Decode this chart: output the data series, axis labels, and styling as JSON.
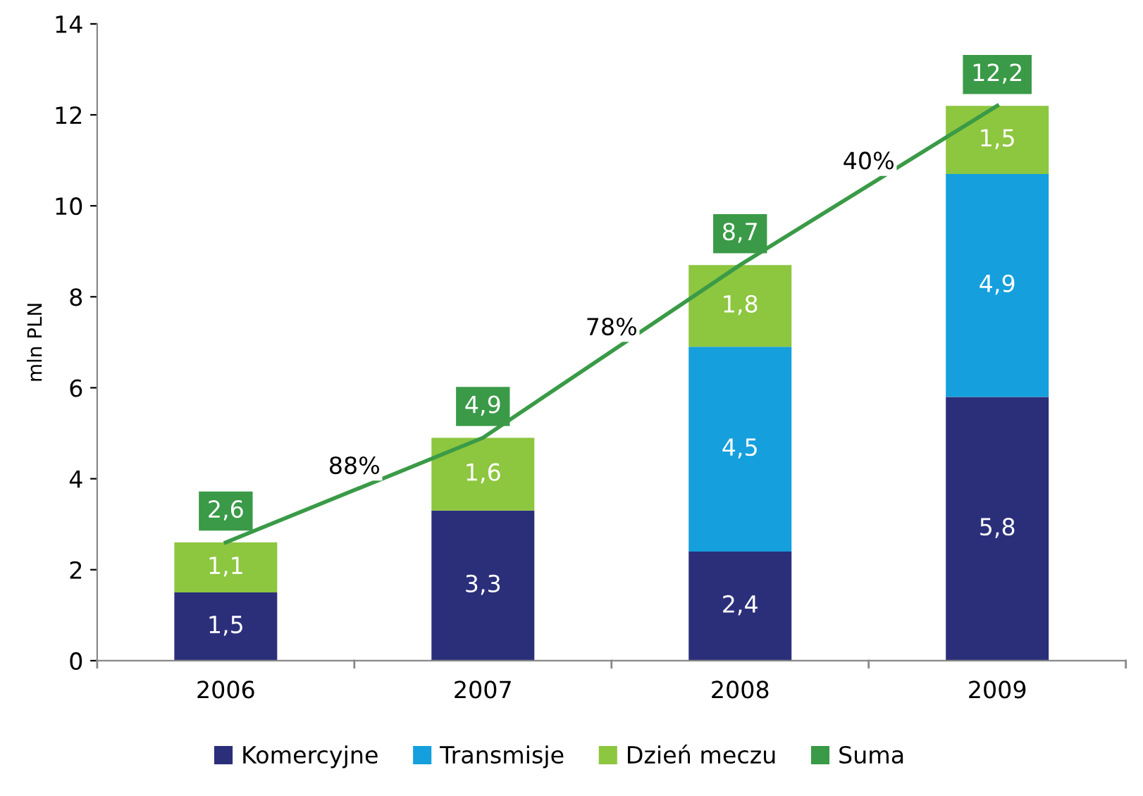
{
  "chart_data": {
    "type": "bar",
    "stacked": true,
    "ylabel": "mln PLN",
    "categories": [
      "2006",
      "2007",
      "2008",
      "2009"
    ],
    "series": [
      {
        "name": "Komercyjne",
        "color": "#2b2f7a",
        "values": [
          1.5,
          3.3,
          2.4,
          5.8
        ],
        "value_labels": [
          "1,5",
          "3,3",
          "2,4",
          "5,8"
        ]
      },
      {
        "name": "Transmisje",
        "color": "#159fdc",
        "values": [
          null,
          null,
          4.5,
          4.9
        ],
        "value_labels": [
          null,
          null,
          "4,5",
          "4,9"
        ]
      },
      {
        "name": "Dzień meczu",
        "color": "#8dc63f",
        "values": [
          1.1,
          1.6,
          1.8,
          1.5
        ],
        "value_labels": [
          "1,1",
          "1,6",
          "1,8",
          "1,5"
        ]
      },
      {
        "name": "Suma",
        "type": "line",
        "color": "#3a9a47",
        "values": [
          2.6,
          4.9,
          8.7,
          12.2
        ],
        "value_labels": [
          "2,6",
          "4,9",
          "8,7",
          "12,2"
        ]
      }
    ],
    "annotations": [
      "88%",
      "78%",
      "40%"
    ],
    "ylim": [
      0,
      14
    ],
    "yticks": [
      0,
      2,
      4,
      6,
      8,
      10,
      12,
      14
    ],
    "grid": false,
    "legend": "bottom"
  }
}
